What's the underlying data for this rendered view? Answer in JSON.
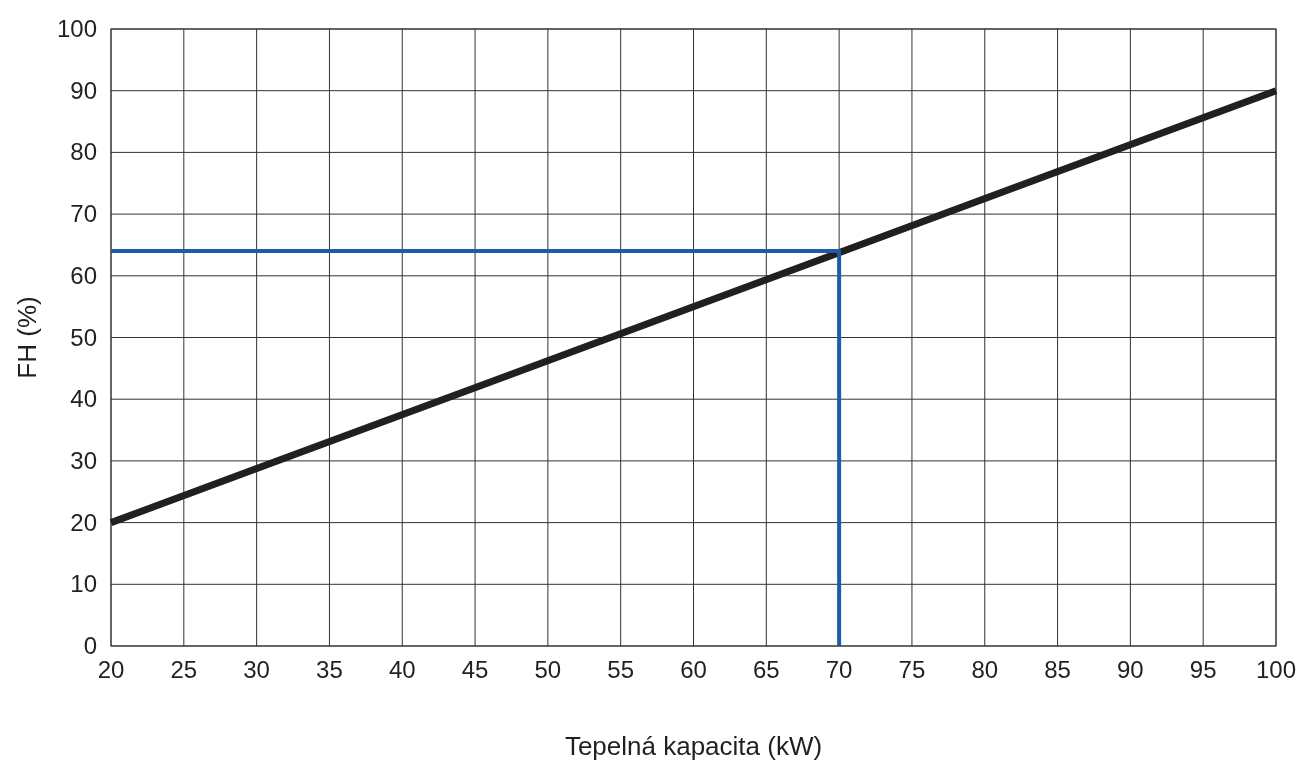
{
  "chart_data": {
    "type": "line",
    "xlabel": "Tepelná kapacita (kW)",
    "ylabel": "FH (%)",
    "xlim": [
      20,
      100
    ],
    "xticks": [
      20,
      25,
      30,
      35,
      40,
      45,
      50,
      55,
      60,
      65,
      70,
      75,
      80,
      85,
      90,
      95,
      100
    ],
    "ylim": [
      0,
      100
    ],
    "yticks": [
      0,
      10,
      20,
      30,
      40,
      50,
      60,
      70,
      80,
      90,
      100
    ],
    "grid": true,
    "line_style": "solid",
    "series": [
      {
        "color": "#231f20",
        "x": [
          20,
          100
        ],
        "values": [
          20,
          90
        ]
      },
      {
        "color": "#1f5aa6",
        "x": [
          20,
          70,
          70
        ],
        "values": [
          64,
          64,
          0
        ]
      }
    ]
  }
}
